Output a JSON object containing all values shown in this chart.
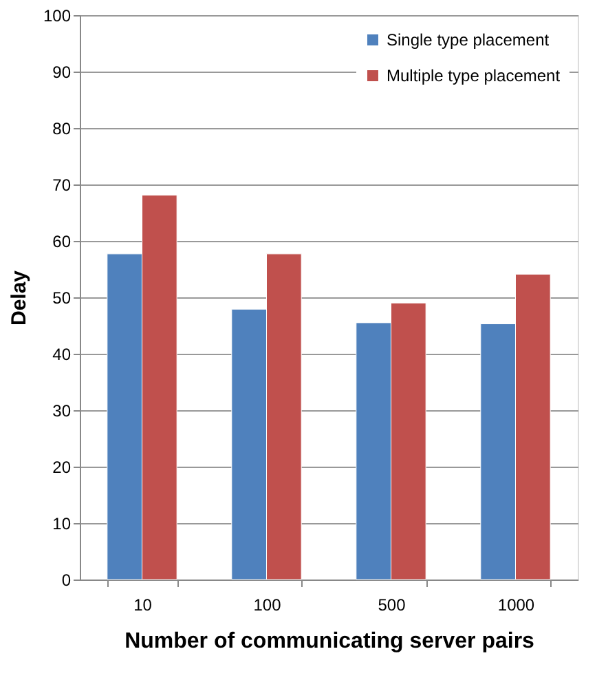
{
  "chart_data": {
    "type": "bar",
    "xlabel": "Number of communicating server pairs",
    "ylabel": "Delay",
    "categories": [
      "10",
      "100",
      "500",
      "1000"
    ],
    "series": [
      {
        "name": "Single type placement",
        "color": "#4f81bd",
        "values": [
          57.7,
          47.9,
          45.5,
          45.3
        ]
      },
      {
        "name": "Multiple type placement",
        "color": "#c0504d",
        "values": [
          68.1,
          57.7,
          49.0,
          54.1
        ]
      }
    ],
    "ylim": [
      0,
      100
    ],
    "yticks": [
      0,
      10,
      20,
      30,
      40,
      50,
      60,
      70,
      80,
      90,
      100
    ],
    "grid": "y",
    "legend": "top right"
  }
}
